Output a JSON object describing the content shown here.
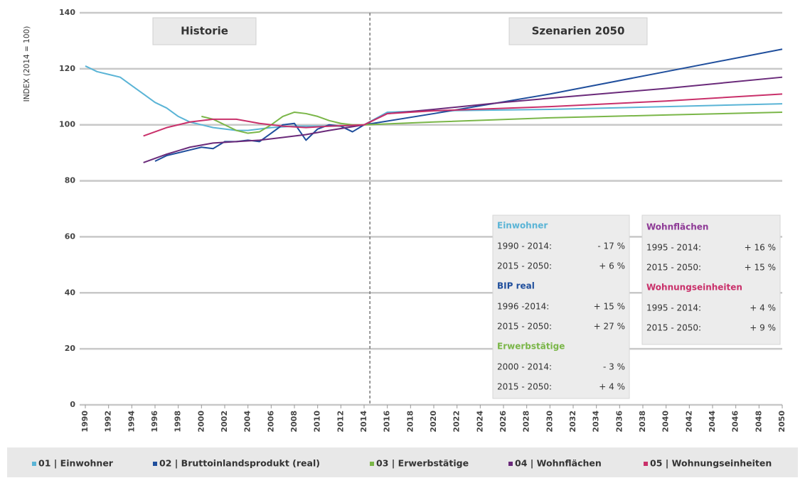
{
  "chart_data": {
    "type": "line",
    "ylabel": "INDEX (2014 = 100)",
    "ylim": [
      0,
      140
    ],
    "yticks": [
      0,
      20,
      40,
      60,
      80,
      100,
      120,
      140
    ],
    "xlim": [
      1990,
      2050
    ],
    "xticks": [
      1990,
      1992,
      1994,
      1996,
      1998,
      2000,
      2002,
      2004,
      2006,
      2008,
      2010,
      2012,
      2014,
      2016,
      2018,
      2020,
      2022,
      2024,
      2026,
      2028,
      2030,
      2032,
      2034,
      2036,
      2038,
      2040,
      2042,
      2044,
      2046,
      2048,
      2050
    ],
    "grid": true,
    "divider_x": 2014.5,
    "period_labels": [
      "Historie",
      "Szenarien 2050"
    ],
    "series": [
      {
        "name": "01 | Einwohner",
        "color": "#5ab4d6",
        "x": [
          1990,
          1991,
          1992,
          1993,
          1994,
          1995,
          1996,
          1997,
          1998,
          1999,
          2000,
          2001,
          2002,
          2003,
          2004,
          2005,
          2006,
          2008,
          2010,
          2012,
          2014,
          2016,
          2020,
          2030,
          2040,
          2050
        ],
        "values": [
          121,
          119,
          118,
          117,
          114,
          111,
          108,
          106,
          103,
          101,
          100,
          99,
          98.5,
          98,
          98,
          98.5,
          99,
          99.5,
          99.5,
          99.5,
          100,
          104.5,
          105,
          105.5,
          106.5,
          107.5
        ]
      },
      {
        "name": "02 | Bruttoinlandsprodukt (real)",
        "color": "#1f4e9c",
        "x": [
          1996,
          1997,
          1998,
          1999,
          2000,
          2001,
          2002,
          2003,
          2004,
          2005,
          2006,
          2007,
          2008,
          2009,
          2010,
          2011,
          2012,
          2013,
          2014,
          2020,
          2030,
          2040,
          2050
        ],
        "values": [
          87,
          89,
          90,
          91,
          92,
          91.5,
          94,
          94,
          94.5,
          94,
          97,
          100,
          100.5,
          94.5,
          98.5,
          100,
          99.5,
          97.5,
          100,
          104,
          111,
          119,
          127
        ]
      },
      {
        "name": "03 | Erwerbstätige",
        "color": "#7ab648",
        "x": [
          2000,
          2001,
          2002,
          2003,
          2004,
          2005,
          2006,
          2007,
          2008,
          2009,
          2010,
          2011,
          2012,
          2013,
          2014,
          2020,
          2030,
          2040,
          2050
        ],
        "values": [
          103,
          102,
          100,
          98,
          97,
          97.5,
          100,
          103,
          104.5,
          104,
          103,
          101.5,
          100.5,
          100,
          100,
          101,
          102.5,
          103.5,
          104.5
        ]
      },
      {
        "name": "04 | Wohnflächen",
        "color": "#6a2a7a",
        "x": [
          1995,
          1997,
          1999,
          2001,
          2003,
          2005,
          2007,
          2009,
          2011,
          2014,
          2016,
          2020,
          2026,
          2030,
          2040,
          2050
        ],
        "values": [
          86.5,
          89.5,
          92,
          93.5,
          94,
          94.5,
          95.5,
          96.5,
          98,
          100,
          104,
          105.5,
          108,
          109.5,
          113,
          117
        ]
      },
      {
        "name": "05 | Wohnungseinheiten",
        "color": "#c9306a",
        "x": [
          1995,
          1997,
          1999,
          2001,
          2003,
          2005,
          2007,
          2009,
          2011,
          2014,
          2016,
          2020,
          2030,
          2040,
          2050
        ],
        "values": [
          96,
          99,
          101,
          102,
          102,
          100.5,
          99.5,
          99,
          99.5,
          100,
          104,
          105,
          106.5,
          108.5,
          111
        ]
      }
    ],
    "panels": [
      {
        "groups": [
          {
            "title": "Einwohner",
            "color": "#5ab4d6",
            "rows": [
              [
                "1990 - 2014:",
                "- 17 %"
              ],
              [
                "2015 - 2050:",
                "+ 6 %"
              ]
            ]
          },
          {
            "title": "BIP real",
            "color": "#1f4e9c",
            "rows": [
              [
                "1996  -2014:",
                "+ 15 %"
              ],
              [
                "2015 - 2050:",
                "+ 27 %"
              ]
            ]
          },
          {
            "title": "Erwerbstätige",
            "color": "#7ab648",
            "rows": [
              [
                "2000 - 2014:",
                "- 3 %"
              ],
              [
                "2015 - 2050:",
                "+ 4 %"
              ]
            ]
          }
        ]
      },
      {
        "groups": [
          {
            "title": "Wohnflächen",
            "color": "#8e3a96",
            "rows": [
              [
                "1995 - 2014:",
                "+ 16 %"
              ],
              [
                "2015 - 2050:",
                "+ 15 %"
              ]
            ]
          },
          {
            "title": "Wohnungseinheiten",
            "color": "#c9306a",
            "rows": [
              [
                "1995 - 2014:",
                "+ 4 %"
              ],
              [
                "2015 - 2050:",
                "+ 9 %"
              ]
            ]
          }
        ]
      }
    ]
  }
}
